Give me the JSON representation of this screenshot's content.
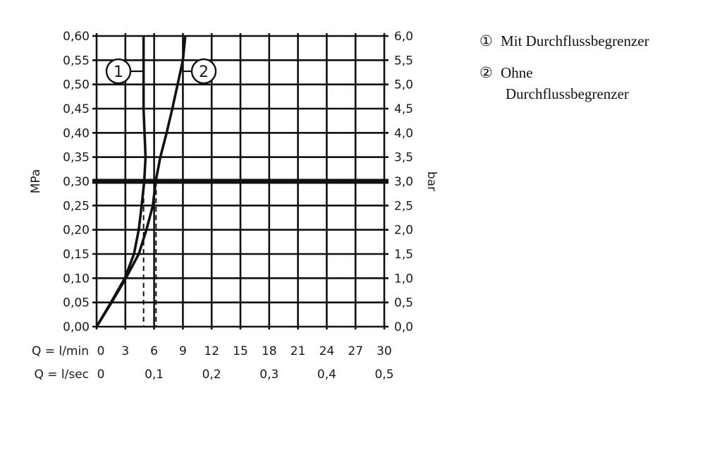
{
  "chart_data": {
    "type": "line",
    "xlabel_rows": [
      {
        "label": "Q = l/min",
        "ticks": [
          "0",
          "3",
          "6",
          "9",
          "12",
          "15",
          "18",
          "21",
          "24",
          "27",
          "30"
        ],
        "values": [
          0,
          3,
          6,
          9,
          12,
          15,
          18,
          21,
          24,
          27,
          30
        ]
      },
      {
        "label": "Q = l/sec",
        "ticks": [
          "0",
          "0,1",
          "0,2",
          "0,3",
          "0,4",
          "0,5"
        ],
        "values": [
          0,
          6,
          12,
          18,
          24,
          30
        ]
      }
    ],
    "ylabel_left": "MPa",
    "ylabel_right": "bar",
    "yticks_left": [
      "0,00",
      "0,05",
      "0,10",
      "0,15",
      "0,20",
      "0,25",
      "0,30",
      "0,35",
      "0,40",
      "0,45",
      "0,50",
      "0,55",
      "0,60"
    ],
    "yticks_right": [
      "0,0",
      "0,5",
      "1,0",
      "1,5",
      "2,0",
      "2,5",
      "3,0",
      "3,5",
      "4,0",
      "4,5",
      "5,0",
      "5,5",
      "6,0"
    ],
    "xlim": [
      0,
      30
    ],
    "ylim": [
      0,
      0.6
    ],
    "grid": true,
    "reference_line_y": 0.3,
    "dashed_markers_x": [
      4.9,
      6.2
    ],
    "series": [
      {
        "name": "1",
        "points": [
          [
            0,
            0
          ],
          [
            1.5,
            0.05
          ],
          [
            2.95,
            0.1
          ],
          [
            3.9,
            0.15
          ],
          [
            4.4,
            0.2
          ],
          [
            4.7,
            0.25
          ],
          [
            4.97,
            0.3
          ],
          [
            5.1,
            0.35
          ],
          [
            5.0,
            0.4
          ],
          [
            4.9,
            0.45
          ],
          [
            4.9,
            0.5
          ],
          [
            4.9,
            0.55
          ],
          [
            4.9,
            0.6
          ]
        ]
      },
      {
        "name": "2",
        "points": [
          [
            0,
            0
          ],
          [
            1.56,
            0.05
          ],
          [
            3.05,
            0.1
          ],
          [
            4.4,
            0.15
          ],
          [
            5.2,
            0.2
          ],
          [
            5.87,
            0.25
          ],
          [
            6.16,
            0.3
          ],
          [
            6.65,
            0.35
          ],
          [
            7.3,
            0.4
          ],
          [
            7.9,
            0.45
          ],
          [
            8.45,
            0.5
          ],
          [
            9.0,
            0.55
          ],
          [
            9.25,
            0.6
          ]
        ]
      }
    ],
    "legend": [
      {
        "marker": "①",
        "text": "Mit Durchflussbegrenzer"
      },
      {
        "marker": "②",
        "text_line1": "Ohne",
        "text_line2": "Durchflussbegrenzer"
      }
    ],
    "legend_position": "right"
  }
}
